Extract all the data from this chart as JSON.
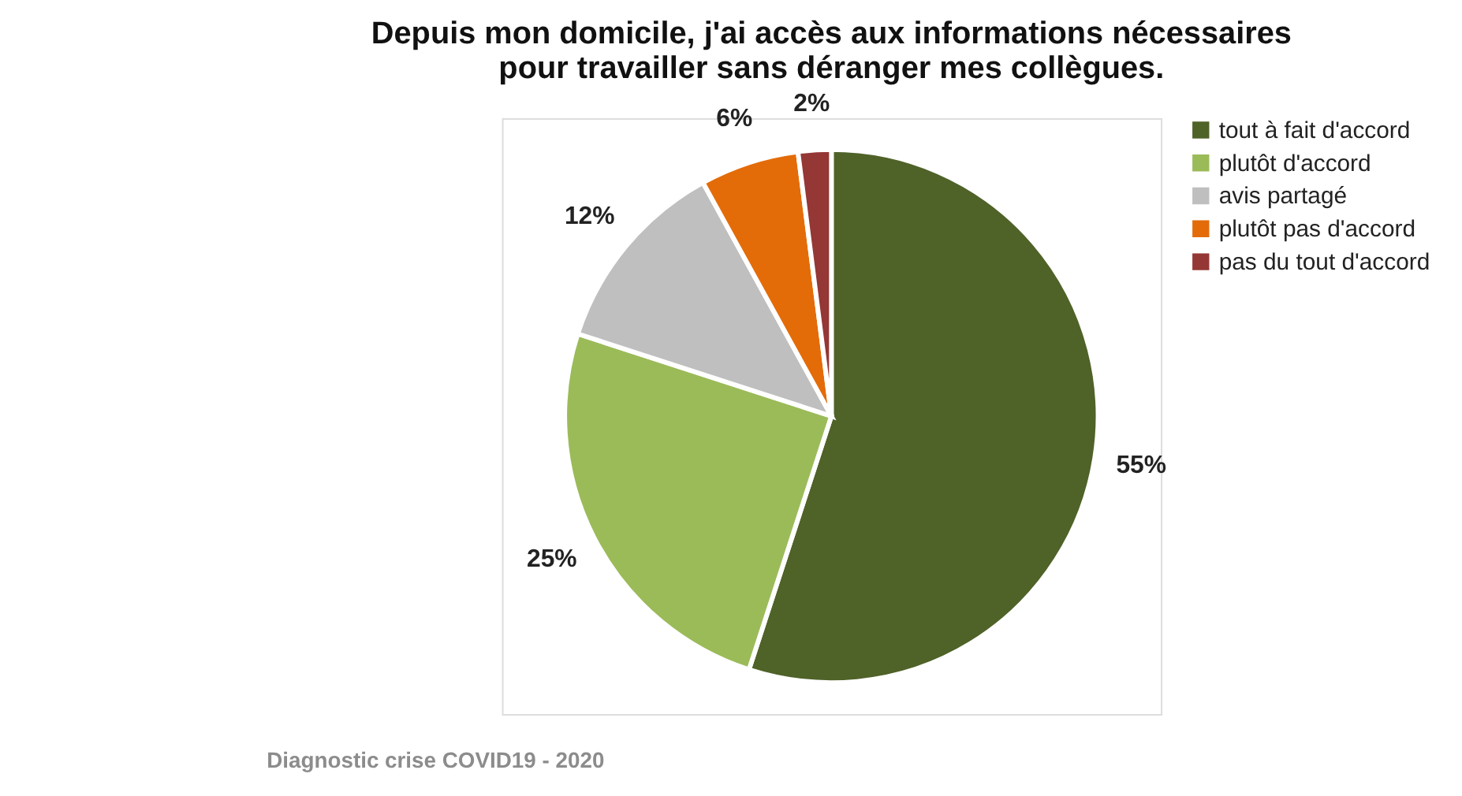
{
  "chart_data": {
    "type": "pie",
    "title": "Depuis mon domicile, j'ai accès aux informations nécessaires\npour travailler sans déranger mes collègues.",
    "categories": [
      "tout à fait d'accord",
      "plutôt d'accord",
      "avis partagé",
      "plutôt pas d'accord",
      "pas du tout d'accord"
    ],
    "values": [
      55,
      25,
      12,
      6,
      2
    ],
    "value_labels": [
      "55%",
      "25%",
      "12%",
      "6%",
      "2%"
    ],
    "colors": [
      "#4f6228",
      "#9bbb59",
      "#bfbfbf",
      "#e36c09",
      "#953735"
    ],
    "legend": "right",
    "annotations": [
      "Diagnostic crise COVID19 - 2020"
    ]
  }
}
